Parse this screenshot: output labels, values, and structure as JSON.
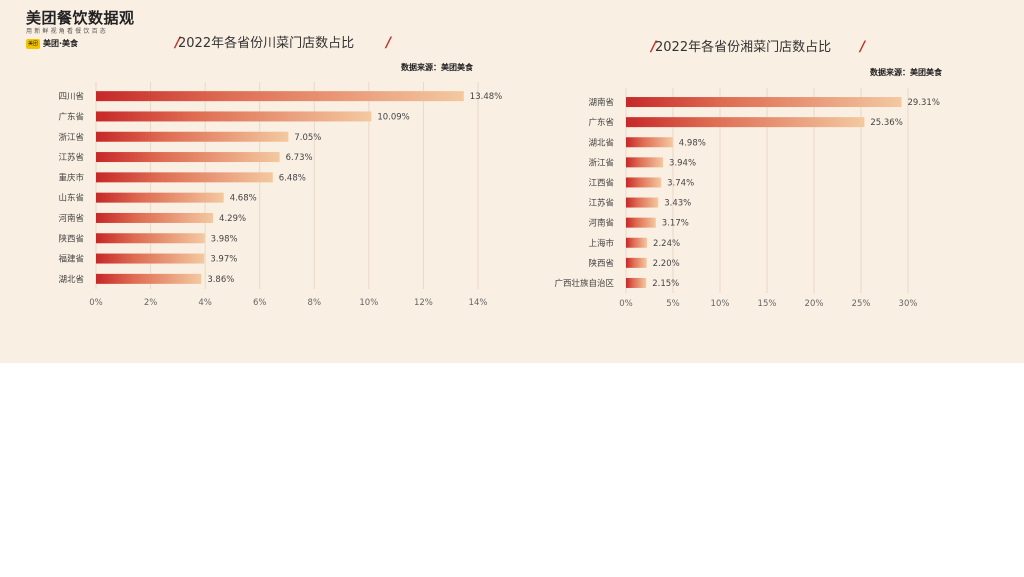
{
  "logo": {
    "title": "美团餐饮数据观",
    "subtitle": "用新鲜视角看餐饮百态",
    "badge": "美团",
    "brand": "美团·美食"
  },
  "colors": {
    "panel_bg": "#faefe3",
    "bar_start": "#c62828",
    "bar_end": "#f3c9a0",
    "title_slash": "#c0342c"
  },
  "chart_data": [
    {
      "type": "bar",
      "orientation": "horizontal",
      "title": "2022年各省份川菜门店数占比",
      "source": "数据来源：美团美食",
      "categories": [
        "四川省",
        "广东省",
        "浙江省",
        "江苏省",
        "重庆市",
        "山东省",
        "河南省",
        "陕西省",
        "福建省",
        "湖北省"
      ],
      "values": [
        13.48,
        10.09,
        7.05,
        6.73,
        6.48,
        4.68,
        4.29,
        3.98,
        3.97,
        3.86
      ],
      "value_labels": [
        "13.48%",
        "10.09%",
        "7.05%",
        "6.73%",
        "6.48%",
        "4.68%",
        "4.29%",
        "3.98%",
        "3.97%",
        "3.86%"
      ],
      "xlim": [
        0,
        14
      ],
      "ticks": [
        0,
        2,
        4,
        6,
        8,
        10,
        12,
        14
      ],
      "tick_labels": [
        "0%",
        "2%",
        "4%",
        "6%",
        "8%",
        "10%",
        "12%",
        "14%"
      ],
      "grid": true
    },
    {
      "type": "bar",
      "orientation": "horizontal",
      "title": "2022年各省份湘菜门店数占比",
      "source": "数据来源：美团美食",
      "categories": [
        "湖南省",
        "广东省",
        "湖北省",
        "浙江省",
        "江西省",
        "江苏省",
        "河南省",
        "上海市",
        "陕西省",
        "广西壮族自治区"
      ],
      "values": [
        29.31,
        25.36,
        4.98,
        3.94,
        3.74,
        3.43,
        3.17,
        2.24,
        2.2,
        2.15
      ],
      "value_labels": [
        "29.31%",
        "25.36%",
        "4.98%",
        "3.94%",
        "3.74%",
        "3.43%",
        "3.17%",
        "2.24%",
        "2.20%",
        "2.15%"
      ],
      "xlim": [
        0,
        30
      ],
      "ticks": [
        0,
        5,
        10,
        15,
        20,
        25,
        30
      ],
      "tick_labels": [
        "0%",
        "5%",
        "10%",
        "15%",
        "20%",
        "25%",
        "30%"
      ],
      "grid": true
    }
  ]
}
